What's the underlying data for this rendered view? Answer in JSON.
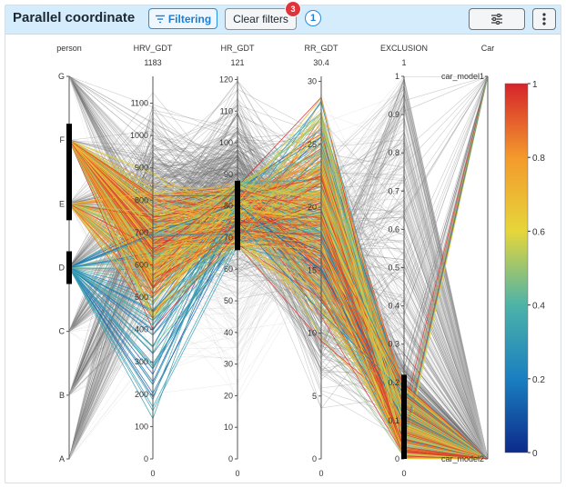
{
  "header": {
    "title": "Parallel coordinate",
    "filtering_label": "Filtering",
    "clear_label": "Clear filters",
    "clear_badge": "3",
    "active_count": "1",
    "settings_icon": "sliders-icon",
    "more_icon": "more-vertical-icon"
  },
  "chart_data": {
    "type": "parallel-coordinates",
    "axes": [
      {
        "name": "person",
        "type": "categorical",
        "ticks": [
          "A",
          "B",
          "C",
          "D",
          "E",
          "F",
          "G"
        ],
        "top_value": ""
      },
      {
        "name": "HRV_GDT",
        "type": "numeric",
        "min": 0,
        "max": 1183,
        "top_value": "1183",
        "bottom_value": "0",
        "ticks": [
          "0",
          "100",
          "200",
          "300",
          "400",
          "500",
          "600",
          "700",
          "800",
          "900",
          "1000",
          "1100"
        ]
      },
      {
        "name": "HR_GDT",
        "type": "numeric",
        "min": 0,
        "max": 121,
        "top_value": "121",
        "bottom_value": "0",
        "ticks": [
          "0",
          "10",
          "20",
          "30",
          "40",
          "50",
          "60",
          "70",
          "80",
          "90",
          "100",
          "110",
          "120"
        ]
      },
      {
        "name": "RR_GDT",
        "type": "numeric",
        "min": 0,
        "max": 30.4,
        "top_value": "30.4",
        "bottom_value": "0",
        "ticks": [
          "0",
          "5",
          "10",
          "15",
          "20",
          "25",
          "30"
        ]
      },
      {
        "name": "EXCLUSION",
        "type": "numeric",
        "min": 0,
        "max": 1,
        "top_value": "1",
        "bottom_value": "0",
        "ticks": [
          "0",
          "0.1",
          "0.2",
          "0.3",
          "0.4",
          "0.5",
          "0.6",
          "0.7",
          "0.8",
          "0.9",
          "1"
        ]
      },
      {
        "name": "Car",
        "type": "categorical",
        "ticks": [
          "car_model2",
          "car_model1"
        ],
        "top_value": ""
      }
    ],
    "filters": [
      {
        "axis": "person",
        "range": [
          "D",
          "D"
        ]
      },
      {
        "axis": "person",
        "range": [
          "E",
          "F"
        ]
      },
      {
        "axis": "HR_GDT",
        "range": [
          66,
          88
        ]
      },
      {
        "axis": "EXCLUSION",
        "range": [
          0,
          0.22
        ]
      }
    ],
    "colorbar": {
      "ticks": [
        "0",
        "0.2",
        "0.4",
        "0.6",
        "0.8",
        "1"
      ],
      "colorscale": [
        "#0d2a8a",
        "#1a7fc0",
        "#4db3a8",
        "#e6d63a",
        "#f39a2c",
        "#d6232b"
      ]
    }
  }
}
